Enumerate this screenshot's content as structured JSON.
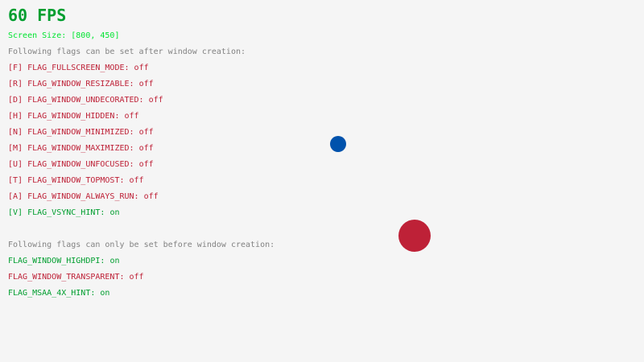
{
  "fps": "60 FPS",
  "screen_size": "Screen Size: [800, 450]",
  "after_header": "Following flags can be set after window creation:",
  "after_flags": [
    {
      "label": "[F] FLAG_FULLSCREEN_MODE: ",
      "state": "off"
    },
    {
      "label": "[R] FLAG_WINDOW_RESIZABLE: ",
      "state": "off"
    },
    {
      "label": "[D] FLAG_WINDOW_UNDECORATED: ",
      "state": "off"
    },
    {
      "label": "[H] FLAG_WINDOW_HIDDEN: ",
      "state": "off"
    },
    {
      "label": "[N] FLAG_WINDOW_MINIMIZED: ",
      "state": "off"
    },
    {
      "label": "[M] FLAG_WINDOW_MAXIMIZED: ",
      "state": "off"
    },
    {
      "label": "[U] FLAG_WINDOW_UNFOCUSED: ",
      "state": "off"
    },
    {
      "label": "[T] FLAG_WINDOW_TOPMOST: ",
      "state": "off"
    },
    {
      "label": "[A] FLAG_WINDOW_ALWAYS_RUN: ",
      "state": "off"
    },
    {
      "label": "[V] FLAG_VSYNC_HINT: ",
      "state": "on"
    }
  ],
  "before_header": "Following flags can only be set before window creation:",
  "before_flags": [
    {
      "label": "FLAG_WINDOW_HIGHDPI: ",
      "state": "on"
    },
    {
      "label": "FLAG_WINDOW_TRANSPARENT: ",
      "state": "off"
    },
    {
      "label": "FLAG_MSAA_4X_HINT: ",
      "state": "on"
    }
  ],
  "colors": {
    "background": "#f5f5f5",
    "on": "#009e2f",
    "off": "#be2137",
    "small_ball": "#0052ac",
    "large_ball": "#be2137"
  }
}
